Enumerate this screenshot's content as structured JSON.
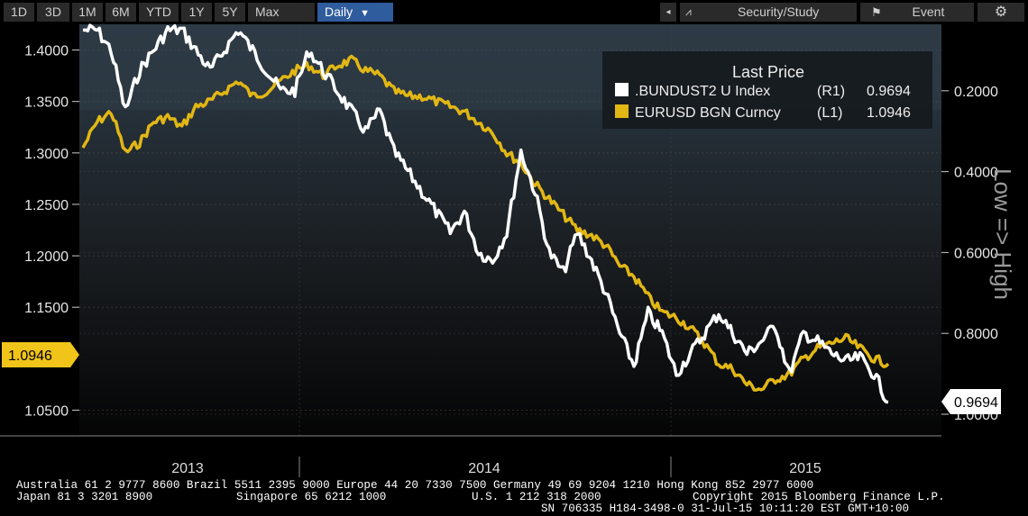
{
  "toolbar": {
    "ranges": [
      "1D",
      "3D",
      "1M",
      "6M",
      "YTD",
      "1Y",
      "5Y",
      "Max"
    ],
    "frequency": "Daily",
    "security_study": "Security/Study",
    "event": "Event"
  },
  "legend": {
    "title": "Last Price",
    "rows": [
      {
        "name": ".BUNDUST2 U Index",
        "axis": "(R1)",
        "value": "0.9694",
        "color": "#ffffff"
      },
      {
        "name": "EURUSD BGN Curncy",
        "axis": "(L1)",
        "value": "1.0946",
        "color": "#e2b714"
      }
    ]
  },
  "last_value_tags": {
    "left": "1.0946",
    "right": "0.9694"
  },
  "right_axis_title": "Low => High",
  "footer": {
    "line1": "Australia 61 2 9777 8600 Brazil 5511 2395 9000 Europe 44 20 7330 7500 Germany 49 69 9204 1210 Hong Kong 852 2977 6000",
    "line2_left": "Japan 81 3 3201 8900",
    "line2_mid": "Singapore 65 6212 1000",
    "line2_us": "U.S. 1 212 318 2000",
    "line2_right": "Copyright 2015 Bloomberg Finance L.P.",
    "line3": "SN 706335 H184-3498-0 31-Jul-15 10:11:20 EST  GMT+10:00"
  },
  "chart_data": {
    "type": "line",
    "x_labels": [
      "2013",
      "2014",
      "2015"
    ],
    "left_axis": {
      "ylim": [
        1.025,
        1.425
      ],
      "ticks": [
        "1.4000",
        "1.3500",
        "1.3000",
        "1.2500",
        "1.2000",
        "1.1500",
        "1.0500"
      ]
    },
    "right_axis": {
      "inverted": true,
      "ylim": [
        0.0,
        1.0
      ],
      "ticks": [
        "0.2000",
        "0.4000",
        "0.6000",
        "0.8000",
        "1.0000"
      ]
    },
    "series": [
      {
        "name": "EURUSD BGN Curncy",
        "axis": "left",
        "color": "#e2b714",
        "values": [
          1.305,
          1.33,
          1.34,
          1.3,
          1.31,
          1.33,
          1.335,
          1.325,
          1.345,
          1.35,
          1.36,
          1.37,
          1.355,
          1.36,
          1.37,
          1.38,
          1.385,
          1.375,
          1.385,
          1.39,
          1.38,
          1.375,
          1.36,
          1.355,
          1.355,
          1.35,
          1.345,
          1.34,
          1.33,
          1.32,
          1.3,
          1.29,
          1.27,
          1.255,
          1.24,
          1.225,
          1.22,
          1.21,
          1.19,
          1.18,
          1.16,
          1.145,
          1.14,
          1.13,
          1.115,
          1.095,
          1.09,
          1.075,
          1.07,
          1.08,
          1.085,
          1.1,
          1.11,
          1.115,
          1.12,
          1.11,
          1.1,
          1.095
        ]
      },
      {
        "name": ".BUNDUST2 U Index",
        "axis": "right",
        "color": "#ffffff",
        "values": [
          0.05,
          0.05,
          0.1,
          0.25,
          0.15,
          0.1,
          0.05,
          0.05,
          0.1,
          0.15,
          0.1,
          0.05,
          0.1,
          0.15,
          0.2,
          0.2,
          0.1,
          0.15,
          0.2,
          0.25,
          0.3,
          0.25,
          0.35,
          0.4,
          0.45,
          0.5,
          0.55,
          0.5,
          0.6,
          0.62,
          0.55,
          0.35,
          0.45,
          0.6,
          0.65,
          0.55,
          0.62,
          0.7,
          0.8,
          0.88,
          0.75,
          0.8,
          0.9,
          0.85,
          0.8,
          0.75,
          0.8,
          0.85,
          0.82,
          0.78,
          0.9,
          0.8,
          0.82,
          0.85,
          0.87,
          0.86,
          0.9,
          0.97
        ]
      }
    ]
  }
}
